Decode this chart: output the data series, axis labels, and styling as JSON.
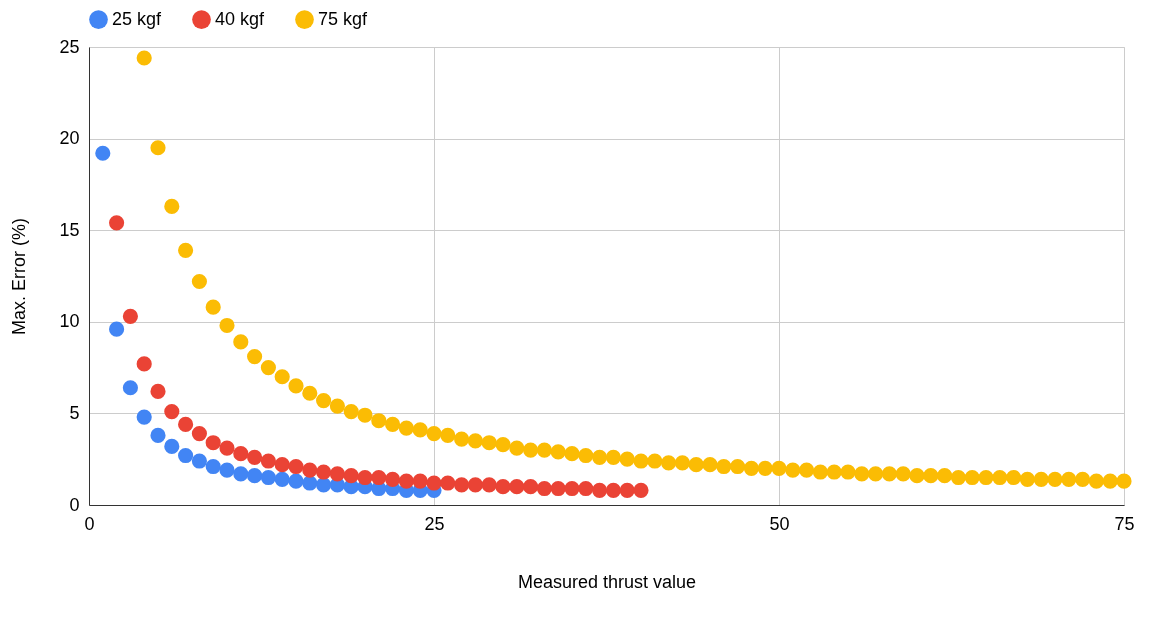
{
  "chart_data": {
    "type": "scatter",
    "xlabel": "Measured thrust value",
    "ylabel": "Max. Error (%)",
    "xlim": [
      0,
      75
    ],
    "xticks": [
      0,
      25,
      50,
      75
    ],
    "ylim": [
      0,
      25
    ],
    "yticks": [
      0,
      5,
      10,
      15,
      20,
      25
    ],
    "grid": true,
    "legend": "top",
    "marker": "circle",
    "series": [
      {
        "name": "25 kgf",
        "color": "#4285f4",
        "x": [
          1,
          2,
          3,
          4,
          5,
          6,
          7,
          8,
          9,
          10,
          11,
          12,
          13,
          14,
          15,
          16,
          17,
          18,
          19,
          20,
          21,
          22,
          23,
          24,
          25
        ],
        "values": [
          19.2,
          9.6,
          6.4,
          4.8,
          3.8,
          3.2,
          2.7,
          2.4,
          2.1,
          1.9,
          1.7,
          1.6,
          1.5,
          1.4,
          1.3,
          1.2,
          1.1,
          1.1,
          1.0,
          1.0,
          0.9,
          0.9,
          0.8,
          0.8,
          0.8
        ]
      },
      {
        "name": "40 kgf",
        "color": "#ea4335",
        "x": [
          2,
          3,
          4,
          5,
          6,
          7,
          8,
          9,
          10,
          11,
          12,
          13,
          14,
          15,
          16,
          17,
          18,
          19,
          20,
          21,
          22,
          23,
          24,
          25,
          26,
          27,
          28,
          29,
          30,
          31,
          32,
          33,
          34,
          35,
          36,
          37,
          38,
          39,
          40
        ],
        "values": [
          15.4,
          10.3,
          7.7,
          6.2,
          5.1,
          4.4,
          3.9,
          3.4,
          3.1,
          2.8,
          2.6,
          2.4,
          2.2,
          2.1,
          1.9,
          1.8,
          1.7,
          1.6,
          1.5,
          1.5,
          1.4,
          1.3,
          1.3,
          1.2,
          1.2,
          1.1,
          1.1,
          1.1,
          1.0,
          1.0,
          1.0,
          0.9,
          0.9,
          0.9,
          0.9,
          0.8,
          0.8,
          0.8,
          0.8
        ]
      },
      {
        "name": "75 kgf",
        "color": "#fbbc04",
        "x": [
          4,
          5,
          6,
          7,
          8,
          9,
          10,
          11,
          12,
          13,
          14,
          15,
          16,
          17,
          18,
          19,
          20,
          21,
          22,
          23,
          24,
          25,
          26,
          27,
          28,
          29,
          30,
          31,
          32,
          33,
          34,
          35,
          36,
          37,
          38,
          39,
          40,
          41,
          42,
          43,
          44,
          45,
          46,
          47,
          48,
          49,
          50,
          51,
          52,
          53,
          54,
          55,
          56,
          57,
          58,
          59,
          60,
          61,
          62,
          63,
          64,
          65,
          66,
          67,
          68,
          69,
          70,
          71,
          72,
          73,
          74,
          75
        ],
        "values": [
          24.4,
          19.5,
          16.3,
          13.9,
          12.2,
          10.8,
          9.8,
          8.9,
          8.1,
          7.5,
          7.0,
          6.5,
          6.1,
          5.7,
          5.4,
          5.1,
          4.9,
          4.6,
          4.4,
          4.2,
          4.1,
          3.9,
          3.8,
          3.6,
          3.5,
          3.4,
          3.3,
          3.1,
          3.0,
          3.0,
          2.9,
          2.8,
          2.7,
          2.6,
          2.6,
          2.5,
          2.4,
          2.4,
          2.3,
          2.3,
          2.2,
          2.2,
          2.1,
          2.1,
          2.0,
          2.0,
          2.0,
          1.9,
          1.9,
          1.8,
          1.8,
          1.8,
          1.7,
          1.7,
          1.7,
          1.7,
          1.6,
          1.6,
          1.6,
          1.5,
          1.5,
          1.5,
          1.5,
          1.5,
          1.4,
          1.4,
          1.4,
          1.4,
          1.4,
          1.3,
          1.3,
          1.3
        ]
      }
    ]
  }
}
